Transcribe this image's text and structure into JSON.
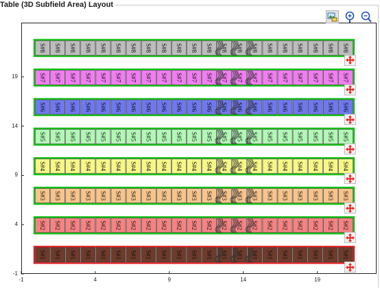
{
  "window": {
    "title": "Table (3D Subfield Area) Layout"
  },
  "toolbar": {
    "items": [
      {
        "icon": "image-export-icon",
        "label": ""
      },
      {
        "icon": "zoom-in-icon",
        "label": ""
      },
      {
        "icon": "zoom-out-icon",
        "label": ""
      }
    ],
    "move_icon": "move-arrows-icon",
    "move_color": "#e8201a"
  },
  "chart_data": {
    "type": "heatmap",
    "title": "",
    "xlabel": "",
    "ylabel": "",
    "xlim": [
      -1,
      23
    ],
    "ylim": [
      -1,
      24.5
    ],
    "xticks": [
      -1,
      4,
      9,
      14,
      19
    ],
    "yticks": [
      -1,
      4,
      9,
      14,
      19
    ],
    "cell_count": 23,
    "rows": [
      {
        "label": "S#8",
        "y": 22,
        "fill": "#bdbdbd",
        "border": "#16c116"
      },
      {
        "label": "S#7",
        "y": 19,
        "fill": "#f07ef0",
        "border": "#16c116"
      },
      {
        "label": "S#6",
        "y": 16,
        "fill": "#6f78ee",
        "border": "#16c116"
      },
      {
        "label": "S#5",
        "y": 13,
        "fill": "#b2f7b6",
        "border": "#16c116"
      },
      {
        "label": "S#4",
        "y": 10,
        "fill": "#f7f788",
        "border": "#16c116"
      },
      {
        "label": "S#3",
        "y": 7,
        "fill": "#f7c48c",
        "border": "#16c116"
      },
      {
        "label": "S#2",
        "y": 4,
        "fill": "#f58383",
        "border": "#16c116"
      },
      {
        "label": "S#1",
        "y": 1,
        "fill": "#6e3b2c",
        "border": "#dd2020"
      }
    ],
    "hatched_columns": [
      12,
      13,
      14
    ]
  }
}
